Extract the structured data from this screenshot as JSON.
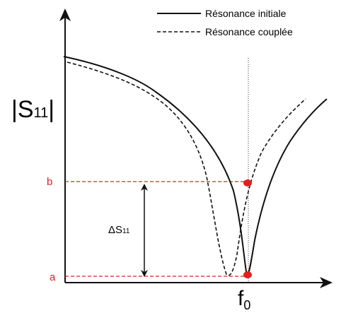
{
  "legend": {
    "solid": "Résonance initiale",
    "dashed": "Résonance couplée"
  },
  "y_axis_label": {
    "left": "|S",
    "sub": "11",
    "right": "|"
  },
  "x_axis_label": {
    "main": "f",
    "sub": "0"
  },
  "level_b": "b",
  "level_a": "a",
  "delta_label": {
    "main": "ΔS",
    "sub": "11"
  }
}
